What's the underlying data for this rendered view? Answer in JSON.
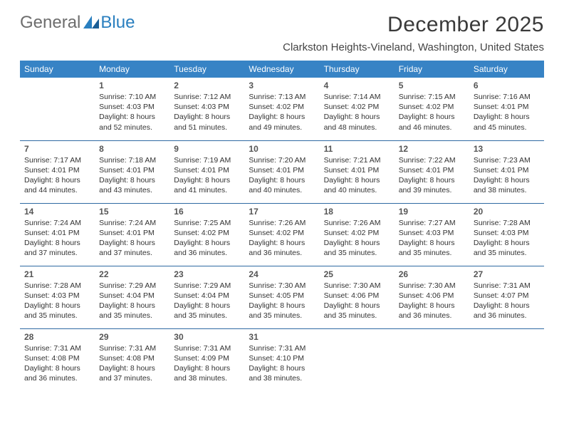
{
  "logo": {
    "word1": "General",
    "word2": "Blue"
  },
  "header": {
    "month_title": "December 2025",
    "location": "Clarkston Heights-Vineland, Washington, United States"
  },
  "colors": {
    "header_bg": "#3783c5",
    "header_text": "#ffffff",
    "cell_border": "#2f6aa3",
    "logo_general": "#6d6d6d",
    "logo_blue": "#2a7fbf"
  },
  "weekdays": [
    "Sunday",
    "Monday",
    "Tuesday",
    "Wednesday",
    "Thursday",
    "Friday",
    "Saturday"
  ],
  "weeks": [
    [
      null,
      {
        "day": "1",
        "sunrise": "Sunrise: 7:10 AM",
        "sunset": "Sunset: 4:03 PM",
        "daylight1": "Daylight: 8 hours",
        "daylight2": "and 52 minutes."
      },
      {
        "day": "2",
        "sunrise": "Sunrise: 7:12 AM",
        "sunset": "Sunset: 4:03 PM",
        "daylight1": "Daylight: 8 hours",
        "daylight2": "and 51 minutes."
      },
      {
        "day": "3",
        "sunrise": "Sunrise: 7:13 AM",
        "sunset": "Sunset: 4:02 PM",
        "daylight1": "Daylight: 8 hours",
        "daylight2": "and 49 minutes."
      },
      {
        "day": "4",
        "sunrise": "Sunrise: 7:14 AM",
        "sunset": "Sunset: 4:02 PM",
        "daylight1": "Daylight: 8 hours",
        "daylight2": "and 48 minutes."
      },
      {
        "day": "5",
        "sunrise": "Sunrise: 7:15 AM",
        "sunset": "Sunset: 4:02 PM",
        "daylight1": "Daylight: 8 hours",
        "daylight2": "and 46 minutes."
      },
      {
        "day": "6",
        "sunrise": "Sunrise: 7:16 AM",
        "sunset": "Sunset: 4:01 PM",
        "daylight1": "Daylight: 8 hours",
        "daylight2": "and 45 minutes."
      }
    ],
    [
      {
        "day": "7",
        "sunrise": "Sunrise: 7:17 AM",
        "sunset": "Sunset: 4:01 PM",
        "daylight1": "Daylight: 8 hours",
        "daylight2": "and 44 minutes."
      },
      {
        "day": "8",
        "sunrise": "Sunrise: 7:18 AM",
        "sunset": "Sunset: 4:01 PM",
        "daylight1": "Daylight: 8 hours",
        "daylight2": "and 43 minutes."
      },
      {
        "day": "9",
        "sunrise": "Sunrise: 7:19 AM",
        "sunset": "Sunset: 4:01 PM",
        "daylight1": "Daylight: 8 hours",
        "daylight2": "and 41 minutes."
      },
      {
        "day": "10",
        "sunrise": "Sunrise: 7:20 AM",
        "sunset": "Sunset: 4:01 PM",
        "daylight1": "Daylight: 8 hours",
        "daylight2": "and 40 minutes."
      },
      {
        "day": "11",
        "sunrise": "Sunrise: 7:21 AM",
        "sunset": "Sunset: 4:01 PM",
        "daylight1": "Daylight: 8 hours",
        "daylight2": "and 40 minutes."
      },
      {
        "day": "12",
        "sunrise": "Sunrise: 7:22 AM",
        "sunset": "Sunset: 4:01 PM",
        "daylight1": "Daylight: 8 hours",
        "daylight2": "and 39 minutes."
      },
      {
        "day": "13",
        "sunrise": "Sunrise: 7:23 AM",
        "sunset": "Sunset: 4:01 PM",
        "daylight1": "Daylight: 8 hours",
        "daylight2": "and 38 minutes."
      }
    ],
    [
      {
        "day": "14",
        "sunrise": "Sunrise: 7:24 AM",
        "sunset": "Sunset: 4:01 PM",
        "daylight1": "Daylight: 8 hours",
        "daylight2": "and 37 minutes."
      },
      {
        "day": "15",
        "sunrise": "Sunrise: 7:24 AM",
        "sunset": "Sunset: 4:01 PM",
        "daylight1": "Daylight: 8 hours",
        "daylight2": "and 37 minutes."
      },
      {
        "day": "16",
        "sunrise": "Sunrise: 7:25 AM",
        "sunset": "Sunset: 4:02 PM",
        "daylight1": "Daylight: 8 hours",
        "daylight2": "and 36 minutes."
      },
      {
        "day": "17",
        "sunrise": "Sunrise: 7:26 AM",
        "sunset": "Sunset: 4:02 PM",
        "daylight1": "Daylight: 8 hours",
        "daylight2": "and 36 minutes."
      },
      {
        "day": "18",
        "sunrise": "Sunrise: 7:26 AM",
        "sunset": "Sunset: 4:02 PM",
        "daylight1": "Daylight: 8 hours",
        "daylight2": "and 35 minutes."
      },
      {
        "day": "19",
        "sunrise": "Sunrise: 7:27 AM",
        "sunset": "Sunset: 4:03 PM",
        "daylight1": "Daylight: 8 hours",
        "daylight2": "and 35 minutes."
      },
      {
        "day": "20",
        "sunrise": "Sunrise: 7:28 AM",
        "sunset": "Sunset: 4:03 PM",
        "daylight1": "Daylight: 8 hours",
        "daylight2": "and 35 minutes."
      }
    ],
    [
      {
        "day": "21",
        "sunrise": "Sunrise: 7:28 AM",
        "sunset": "Sunset: 4:03 PM",
        "daylight1": "Daylight: 8 hours",
        "daylight2": "and 35 minutes."
      },
      {
        "day": "22",
        "sunrise": "Sunrise: 7:29 AM",
        "sunset": "Sunset: 4:04 PM",
        "daylight1": "Daylight: 8 hours",
        "daylight2": "and 35 minutes."
      },
      {
        "day": "23",
        "sunrise": "Sunrise: 7:29 AM",
        "sunset": "Sunset: 4:04 PM",
        "daylight1": "Daylight: 8 hours",
        "daylight2": "and 35 minutes."
      },
      {
        "day": "24",
        "sunrise": "Sunrise: 7:30 AM",
        "sunset": "Sunset: 4:05 PM",
        "daylight1": "Daylight: 8 hours",
        "daylight2": "and 35 minutes."
      },
      {
        "day": "25",
        "sunrise": "Sunrise: 7:30 AM",
        "sunset": "Sunset: 4:06 PM",
        "daylight1": "Daylight: 8 hours",
        "daylight2": "and 35 minutes."
      },
      {
        "day": "26",
        "sunrise": "Sunrise: 7:30 AM",
        "sunset": "Sunset: 4:06 PM",
        "daylight1": "Daylight: 8 hours",
        "daylight2": "and 36 minutes."
      },
      {
        "day": "27",
        "sunrise": "Sunrise: 7:31 AM",
        "sunset": "Sunset: 4:07 PM",
        "daylight1": "Daylight: 8 hours",
        "daylight2": "and 36 minutes."
      }
    ],
    [
      {
        "day": "28",
        "sunrise": "Sunrise: 7:31 AM",
        "sunset": "Sunset: 4:08 PM",
        "daylight1": "Daylight: 8 hours",
        "daylight2": "and 36 minutes."
      },
      {
        "day": "29",
        "sunrise": "Sunrise: 7:31 AM",
        "sunset": "Sunset: 4:08 PM",
        "daylight1": "Daylight: 8 hours",
        "daylight2": "and 37 minutes."
      },
      {
        "day": "30",
        "sunrise": "Sunrise: 7:31 AM",
        "sunset": "Sunset: 4:09 PM",
        "daylight1": "Daylight: 8 hours",
        "daylight2": "and 38 minutes."
      },
      {
        "day": "31",
        "sunrise": "Sunrise: 7:31 AM",
        "sunset": "Sunset: 4:10 PM",
        "daylight1": "Daylight: 8 hours",
        "daylight2": "and 38 minutes."
      },
      null,
      null,
      null
    ]
  ]
}
